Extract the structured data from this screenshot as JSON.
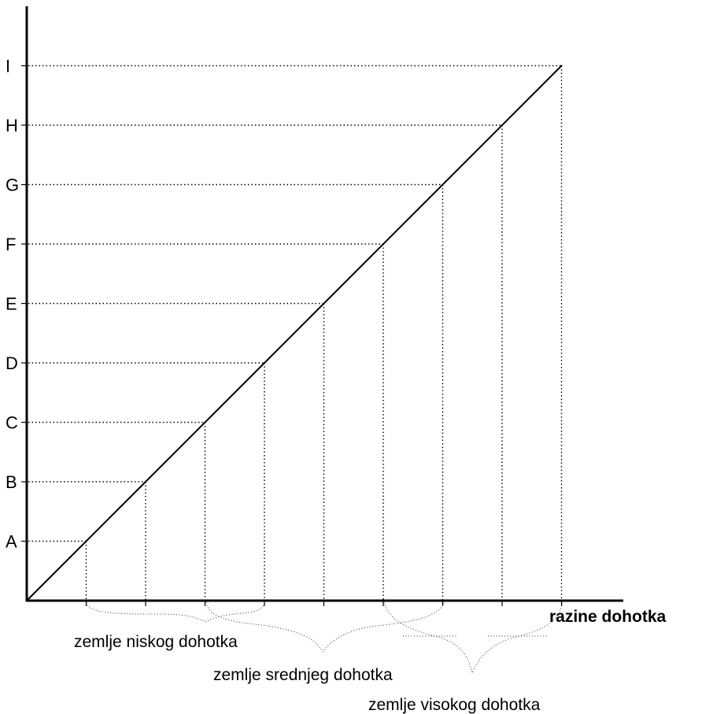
{
  "diagram": {
    "y_levels": [
      "A",
      "B",
      "C",
      "D",
      "E",
      "F",
      "G",
      "H",
      "I"
    ],
    "x_axis_label": "razine dohotka",
    "groups": [
      {
        "label": "zemlje niskog dohotka"
      },
      {
        "label": "zemlje srednjeg dohotka"
      },
      {
        "label": "zemlje visokog dohotka"
      }
    ]
  }
}
